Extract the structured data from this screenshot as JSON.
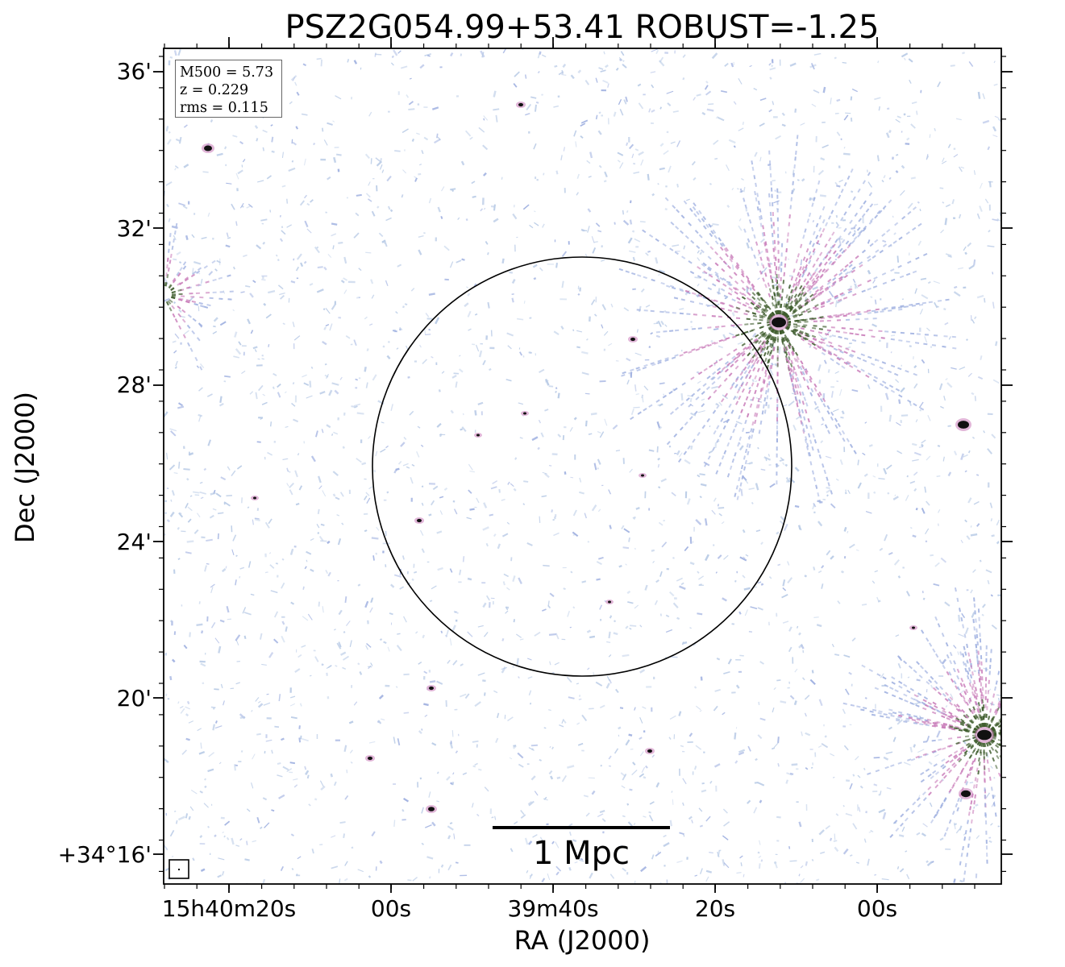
{
  "figure": {
    "title": "PSZ2G054.99+53.41 ROBUST=-1.25",
    "info_box": {
      "m500": "M500 = 5.73",
      "redshift": "z = 0.229",
      "rms": "rms = 0.115"
    },
    "x_axis": {
      "label": "RA (J2000)",
      "tick_labels": [
        "15h40m20s",
        "00s",
        "39m40s",
        "20s",
        "00s"
      ]
    },
    "y_axis": {
      "label": "Dec (J2000)",
      "tick_labels": [
        "36'",
        "32'",
        "28'",
        "24'",
        "20'",
        "+34°16'"
      ]
    },
    "scale_bar": {
      "label": "1 Mpc"
    },
    "colors": {
      "noise_light": "#b9cbe6",
      "noise_mid": "#9fb0e0",
      "emission_magenta": "#c87ab8",
      "emission_green": "#3c5a2a",
      "source_core": "#111111",
      "circle": "#000000"
    }
  }
}
